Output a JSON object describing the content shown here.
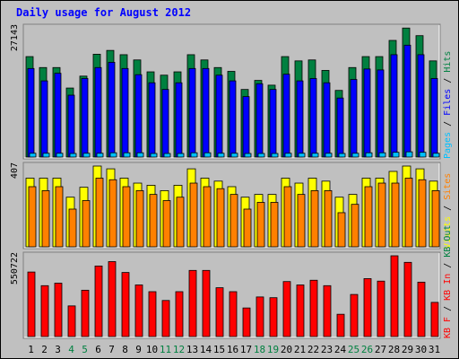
{
  "title": "Daily usage for August 2012",
  "colors": {
    "background": "#c0c0c0",
    "title": "#0000ff",
    "hits": "#008040",
    "files": "#0000ff",
    "pages": "#00c0ff",
    "visits": "#ffff00",
    "sites": "#ff8000",
    "kbin": "#ff0000",
    "weekend_label": "#008040",
    "weekday_label": "#000000"
  },
  "chart_data": [
    {
      "type": "bar",
      "panel": "hits-files-pages",
      "y_max_label": "27143",
      "y_max": 27143,
      "legend": [
        "Pages",
        "/",
        "Files",
        "/",
        "Hits"
      ],
      "categories": [
        "1",
        "2",
        "3",
        "4",
        "5",
        "6",
        "7",
        "8",
        "9",
        "10",
        "11",
        "12",
        "13",
        "14",
        "15",
        "16",
        "17",
        "18",
        "19",
        "20",
        "21",
        "22",
        "23",
        "24",
        "25",
        "26",
        "27",
        "28",
        "29",
        "30",
        "31"
      ],
      "series": [
        {
          "name": "Hits",
          "values": [
            21100,
            18800,
            18800,
            14500,
            17000,
            21600,
            22400,
            21500,
            20400,
            17900,
            17200,
            17900,
            21500,
            20400,
            18800,
            18000,
            14200,
            16100,
            15100,
            21100,
            20200,
            20400,
            18200,
            14000,
            18800,
            21100,
            21100,
            24500,
            27100,
            25500,
            20200
          ]
        },
        {
          "name": "Files",
          "values": [
            18600,
            16000,
            17600,
            13000,
            16500,
            18800,
            19900,
            18600,
            17300,
            15600,
            14200,
            15600,
            18600,
            18600,
            17200,
            16000,
            12700,
            15400,
            14200,
            17400,
            16000,
            16500,
            15600,
            12400,
            16300,
            18500,
            18300,
            21500,
            23500,
            21500,
            16500
          ]
        },
        {
          "name": "Pages",
          "values": [
            800,
            800,
            800,
            600,
            800,
            800,
            900,
            900,
            900,
            700,
            700,
            700,
            900,
            900,
            800,
            800,
            600,
            700,
            600,
            800,
            800,
            800,
            800,
            600,
            800,
            900,
            900,
            1000,
            1100,
            1000,
            800
          ]
        }
      ]
    },
    {
      "type": "bar",
      "panel": "visits-sites",
      "y_max_label": "407",
      "y_max": 407,
      "legend": [
        "Visits",
        "/",
        "Sites"
      ],
      "categories": [
        "1",
        "2",
        "3",
        "4",
        "5",
        "6",
        "7",
        "8",
        "9",
        "10",
        "11",
        "12",
        "13",
        "14",
        "15",
        "16",
        "17",
        "18",
        "19",
        "20",
        "21",
        "22",
        "23",
        "24",
        "25",
        "26",
        "27",
        "28",
        "29",
        "30",
        "31"
      ],
      "series": [
        {
          "name": "Visits",
          "values": [
            346,
            346,
            346,
            250,
            300,
            407,
            393,
            346,
            321,
            310,
            283,
            310,
            393,
            346,
            331,
            303,
            250,
            264,
            264,
            346,
            321,
            346,
            331,
            250,
            264,
            346,
            346,
            380,
            407,
            393,
            331
          ]
        },
        {
          "name": "Sites",
          "values": [
            303,
            283,
            303,
            190,
            233,
            346,
            338,
            303,
            283,
            264,
            233,
            250,
            321,
            303,
            293,
            264,
            190,
            224,
            224,
            303,
            264,
            283,
            283,
            172,
            214,
            303,
            321,
            321,
            346,
            338,
            283
          ]
        }
      ]
    },
    {
      "type": "bar",
      "panel": "kbin-kbout",
      "y_max_label": "550722",
      "y_max": 550722,
      "legend": [
        "KB F",
        "/",
        "KB In",
        "/",
        "KB Out"
      ],
      "categories": [
        "1",
        "2",
        "3",
        "4",
        "5",
        "6",
        "7",
        "8",
        "9",
        "10",
        "11",
        "12",
        "13",
        "14",
        "15",
        "16",
        "17",
        "18",
        "19",
        "20",
        "21",
        "22",
        "23",
        "24",
        "25",
        "26",
        "27",
        "28",
        "29",
        "30",
        "31"
      ],
      "series": [
        {
          "name": "KB F",
          "values": [
            440000,
            347000,
            364000,
            209000,
            316000,
            481000,
            511000,
            437000,
            352000,
            306000,
            246000,
            306000,
            451000,
            451000,
            333000,
            306000,
            195000,
            270000,
            265000,
            375000,
            352000,
            384000,
            347000,
            152000,
            287000,
            395000,
            378000,
            550722,
            506000,
            371000,
            233000
          ]
        }
      ]
    }
  ],
  "weekend_days": [
    "4",
    "5",
    "11",
    "12",
    "18",
    "19",
    "25",
    "26"
  ]
}
